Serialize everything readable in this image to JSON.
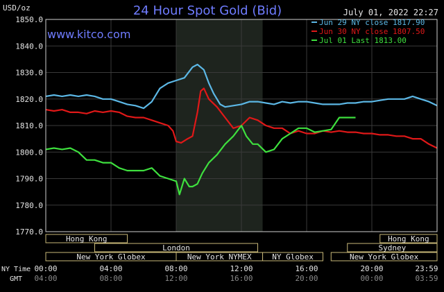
{
  "chart_data": {
    "type": "line",
    "title": "24 Hour Spot Gold (Bid)",
    "site": "www.kitco.com",
    "timestamp": "July 01, 2022 22:27",
    "ylabel": "USD/oz",
    "ylim": [
      1770,
      1850
    ],
    "y_ticks": [
      1850,
      1840,
      1830,
      1820,
      1810,
      1800,
      1790,
      1780,
      1770
    ],
    "y_tick_labels": [
      "1850.0",
      "1840.0",
      "1830.0",
      "1820.0",
      "1810.0",
      "1800.0",
      "1790.0",
      "1780.0",
      "1770.0"
    ],
    "x_unit": "hours",
    "xlim": [
      0,
      24
    ],
    "x_ticks_ny": [
      {
        "x": 0,
        "label": "00:00"
      },
      {
        "x": 4,
        "label": "04:00"
      },
      {
        "x": 8,
        "label": "08:00"
      },
      {
        "x": 12,
        "label": "12:00"
      },
      {
        "x": 16,
        "label": "16:00"
      },
      {
        "x": 20,
        "label": "20:00"
      },
      {
        "x": 24,
        "label": "23:59"
      }
    ],
    "x_ticks_gmt": [
      "04:00",
      "08:00",
      "12:00",
      "16:00",
      "20:00",
      "00:00",
      "03:59"
    ],
    "x_row_labels": {
      "ny": "NY Time",
      "gmt": "GMT"
    },
    "shaded_session": [
      8.0,
      13.3
    ],
    "grid": true,
    "legend_position": "top-right",
    "series": [
      {
        "name": "Jun 29 NY close 1817.90",
        "color": "#5cb8e6",
        "points": [
          [
            0,
            1821
          ],
          [
            0.5,
            1821.5
          ],
          [
            1,
            1821
          ],
          [
            1.5,
            1821.5
          ],
          [
            2,
            1821
          ],
          [
            2.5,
            1821.5
          ],
          [
            3,
            1821
          ],
          [
            3.5,
            1820
          ],
          [
            4,
            1820
          ],
          [
            4.5,
            1819
          ],
          [
            5,
            1818
          ],
          [
            5.5,
            1817.5
          ],
          [
            6,
            1816.5
          ],
          [
            6.5,
            1819
          ],
          [
            7,
            1824
          ],
          [
            7.5,
            1826
          ],
          [
            8,
            1827
          ],
          [
            8.5,
            1828
          ],
          [
            9,
            1832
          ],
          [
            9.3,
            1833
          ],
          [
            9.7,
            1831
          ],
          [
            10,
            1826
          ],
          [
            10.3,
            1822
          ],
          [
            10.7,
            1818
          ],
          [
            11,
            1817
          ],
          [
            11.5,
            1817.5
          ],
          [
            12,
            1818
          ],
          [
            12.5,
            1819
          ],
          [
            13,
            1819
          ],
          [
            13.5,
            1818.5
          ],
          [
            14,
            1818
          ],
          [
            14.5,
            1819
          ],
          [
            15,
            1818.5
          ],
          [
            15.5,
            1819
          ],
          [
            16,
            1819
          ],
          [
            16.5,
            1818.5
          ],
          [
            17,
            1818
          ],
          [
            17.5,
            1818
          ],
          [
            18,
            1818
          ],
          [
            18.5,
            1818.5
          ],
          [
            19,
            1818.5
          ],
          [
            19.5,
            1819
          ],
          [
            20,
            1819
          ],
          [
            20.5,
            1819.5
          ],
          [
            21,
            1820
          ],
          [
            21.5,
            1820
          ],
          [
            22,
            1820
          ],
          [
            22.5,
            1821
          ],
          [
            23,
            1820
          ],
          [
            23.5,
            1819
          ],
          [
            24,
            1817.5
          ]
        ]
      },
      {
        "name": "Jun 30 NY close 1807.50",
        "color": "#e01818",
        "points": [
          [
            0,
            1816
          ],
          [
            0.5,
            1815.5
          ],
          [
            1,
            1816
          ],
          [
            1.5,
            1815
          ],
          [
            2,
            1815
          ],
          [
            2.5,
            1814.5
          ],
          [
            3,
            1815.5
          ],
          [
            3.5,
            1815
          ],
          [
            4,
            1815.5
          ],
          [
            4.5,
            1815
          ],
          [
            5,
            1813.5
          ],
          [
            5.5,
            1813
          ],
          [
            6,
            1813
          ],
          [
            6.5,
            1812
          ],
          [
            7,
            1811
          ],
          [
            7.5,
            1810
          ],
          [
            7.8,
            1808
          ],
          [
            8,
            1804
          ],
          [
            8.3,
            1803.5
          ],
          [
            8.7,
            1805
          ],
          [
            9,
            1806
          ],
          [
            9.3,
            1815
          ],
          [
            9.5,
            1823
          ],
          [
            9.7,
            1824
          ],
          [
            10,
            1820
          ],
          [
            10.5,
            1817
          ],
          [
            11,
            1813
          ],
          [
            11.5,
            1809
          ],
          [
            12,
            1810
          ],
          [
            12.5,
            1813
          ],
          [
            13,
            1812
          ],
          [
            13.5,
            1810
          ],
          [
            14,
            1809
          ],
          [
            14.5,
            1809
          ],
          [
            15,
            1807
          ],
          [
            15.5,
            1808
          ],
          [
            16,
            1807
          ],
          [
            16.5,
            1807
          ],
          [
            17,
            1808
          ],
          [
            17.5,
            1807.5
          ],
          [
            18,
            1808
          ],
          [
            18.5,
            1807.5
          ],
          [
            19,
            1807.5
          ],
          [
            19.5,
            1807
          ],
          [
            20,
            1807
          ],
          [
            20.5,
            1806.5
          ],
          [
            21,
            1806.5
          ],
          [
            21.5,
            1806
          ],
          [
            22,
            1806
          ],
          [
            22.5,
            1805
          ],
          [
            23,
            1805
          ],
          [
            23.5,
            1803
          ],
          [
            24,
            1801.5
          ]
        ]
      },
      {
        "name": "Jul 01 Last 1813.00",
        "color": "#3ee03e",
        "points": [
          [
            0,
            1801
          ],
          [
            0.5,
            1801.5
          ],
          [
            1,
            1801
          ],
          [
            1.5,
            1801.5
          ],
          [
            2,
            1800
          ],
          [
            2.5,
            1797
          ],
          [
            3,
            1797
          ],
          [
            3.5,
            1796
          ],
          [
            4,
            1796
          ],
          [
            4.5,
            1794
          ],
          [
            5,
            1793
          ],
          [
            5.5,
            1793
          ],
          [
            6,
            1793
          ],
          [
            6.5,
            1794
          ],
          [
            7,
            1791
          ],
          [
            7.5,
            1790
          ],
          [
            8,
            1789
          ],
          [
            8.2,
            1784
          ],
          [
            8.5,
            1790
          ],
          [
            8.8,
            1787
          ],
          [
            9,
            1787
          ],
          [
            9.3,
            1788
          ],
          [
            9.6,
            1792
          ],
          [
            10,
            1796
          ],
          [
            10.5,
            1799
          ],
          [
            11,
            1803
          ],
          [
            11.5,
            1806
          ],
          [
            12,
            1810
          ],
          [
            12.3,
            1806
          ],
          [
            12.7,
            1803
          ],
          [
            13,
            1803
          ],
          [
            13.5,
            1800
          ],
          [
            14,
            1801
          ],
          [
            14.5,
            1805
          ],
          [
            15,
            1807
          ],
          [
            15.5,
            1809
          ],
          [
            16,
            1809
          ],
          [
            16.5,
            1807.5
          ],
          [
            17,
            1808
          ],
          [
            17.5,
            1808.5
          ],
          [
            18,
            1813
          ],
          [
            18.5,
            1813
          ],
          [
            19,
            1813
          ]
        ]
      }
    ],
    "session_bars": [
      {
        "label": "Hong Kong",
        "row": 0,
        "start": 0,
        "end": 5
      },
      {
        "label": "London",
        "row": 1,
        "start": 3,
        "end": 13
      },
      {
        "label": "New York Globex",
        "row": 2,
        "start": 0,
        "end": 8
      },
      {
        "label": "New York NYMEX",
        "row": 2,
        "start": 8,
        "end": 13.3
      },
      {
        "label": "NY Globex",
        "row": 2,
        "start": 13.3,
        "end": 17
      },
      {
        "label": "Hong Kong",
        "row": 0,
        "start": 20.5,
        "end": 24
      },
      {
        "label": "Sydney",
        "row": 1,
        "start": 18.5,
        "end": 24
      },
      {
        "label": "New York Globex",
        "row": 2,
        "start": 17.5,
        "end": 24
      }
    ]
  }
}
